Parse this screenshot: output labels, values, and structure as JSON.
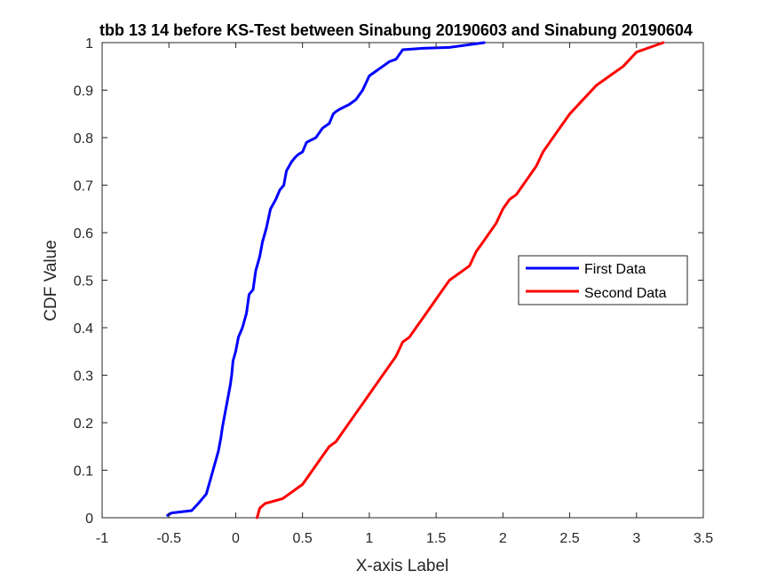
{
  "chart_data": {
    "type": "line",
    "title": "tbb 13 14 before KS-Test between Sinabung 20190603 and Sinabung 20190604",
    "xlabel": "X-axis Label",
    "ylabel": "CDF Value",
    "xlim": [
      -1,
      3.5
    ],
    "ylim": [
      0,
      1
    ],
    "xticks": [
      -1,
      -0.5,
      0,
      0.5,
      1,
      1.5,
      2,
      2.5,
      3,
      3.5
    ],
    "xtick_labels": [
      "-1",
      "-0.5",
      "0",
      "0.5",
      "1",
      "1.5",
      "2",
      "2.5",
      "3",
      "3.5"
    ],
    "yticks": [
      0,
      0.1,
      0.2,
      0.3,
      0.4,
      0.5,
      0.6,
      0.7,
      0.8,
      0.9,
      1
    ],
    "ytick_labels": [
      "0",
      "0.1",
      "0.2",
      "0.3",
      "0.4",
      "0.5",
      "0.6",
      "0.7",
      "0.8",
      "0.9",
      "1"
    ],
    "grid": false,
    "legend_position": "right",
    "series": [
      {
        "name": "First Data",
        "color": "#0000ff",
        "x": [
          -0.51,
          -0.48,
          -0.33,
          -0.28,
          -0.22,
          -0.19,
          -0.16,
          -0.13,
          -0.11,
          -0.1,
          -0.08,
          -0.06,
          -0.04,
          -0.03,
          -0.02,
          0.0,
          0.02,
          0.05,
          0.08,
          0.1,
          0.13,
          0.15,
          0.18,
          0.2,
          0.23,
          0.26,
          0.3,
          0.33,
          0.36,
          0.38,
          0.42,
          0.45,
          0.47,
          0.5,
          0.53,
          0.6,
          0.65,
          0.7,
          0.73,
          0.75,
          0.78,
          0.85,
          0.9,
          0.95,
          1.0,
          1.05,
          1.1,
          1.15,
          1.2,
          1.25,
          1.4,
          1.6,
          1.86
        ],
        "y": [
          0.005,
          0.01,
          0.015,
          0.03,
          0.05,
          0.08,
          0.11,
          0.14,
          0.17,
          0.19,
          0.22,
          0.25,
          0.28,
          0.3,
          0.33,
          0.35,
          0.38,
          0.4,
          0.43,
          0.47,
          0.48,
          0.52,
          0.55,
          0.58,
          0.61,
          0.65,
          0.67,
          0.69,
          0.7,
          0.73,
          0.75,
          0.76,
          0.765,
          0.77,
          0.79,
          0.8,
          0.82,
          0.83,
          0.85,
          0.855,
          0.86,
          0.87,
          0.88,
          0.9,
          0.93,
          0.94,
          0.95,
          0.96,
          0.965,
          0.985,
          0.988,
          0.99,
          1.0
        ],
        "line_width": 3
      },
      {
        "name": "Second Data",
        "color": "#ff0000",
        "x": [
          0.16,
          0.18,
          0.22,
          0.35,
          0.4,
          0.45,
          0.5,
          0.55,
          0.6,
          0.65,
          0.7,
          0.75,
          0.8,
          0.85,
          0.9,
          0.95,
          1.0,
          1.05,
          1.1,
          1.15,
          1.2,
          1.25,
          1.3,
          1.35,
          1.4,
          1.45,
          1.5,
          1.55,
          1.6,
          1.65,
          1.7,
          1.75,
          1.8,
          1.85,
          1.9,
          1.95,
          2.0,
          2.05,
          2.1,
          2.15,
          2.2,
          2.25,
          2.3,
          2.35,
          2.4,
          2.45,
          2.5,
          2.6,
          2.7,
          2.8,
          2.9,
          3.0,
          3.2
        ],
        "y": [
          0.0,
          0.02,
          0.03,
          0.04,
          0.05,
          0.06,
          0.07,
          0.09,
          0.11,
          0.13,
          0.15,
          0.16,
          0.18,
          0.2,
          0.22,
          0.24,
          0.26,
          0.28,
          0.3,
          0.32,
          0.34,
          0.37,
          0.38,
          0.4,
          0.42,
          0.44,
          0.46,
          0.48,
          0.5,
          0.51,
          0.52,
          0.53,
          0.56,
          0.58,
          0.6,
          0.62,
          0.65,
          0.67,
          0.68,
          0.7,
          0.72,
          0.74,
          0.77,
          0.79,
          0.81,
          0.83,
          0.85,
          0.88,
          0.91,
          0.93,
          0.95,
          0.98,
          1.0
        ],
        "line_width": 3
      }
    ]
  }
}
